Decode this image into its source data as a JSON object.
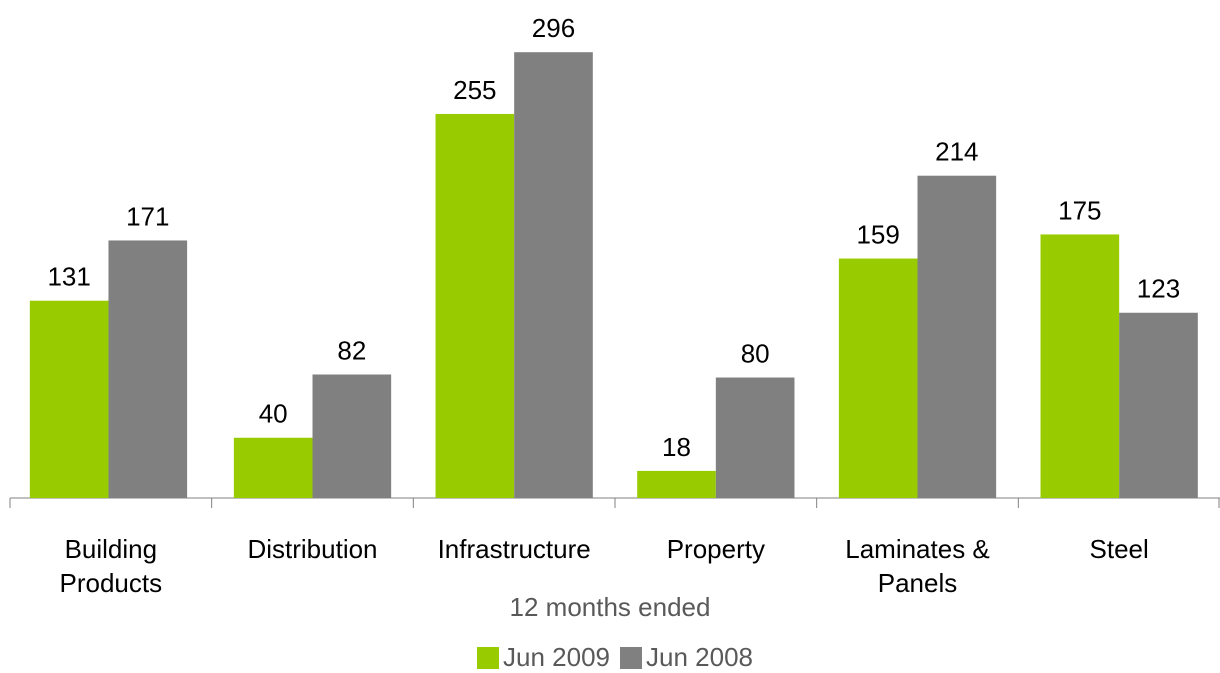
{
  "chart_data": {
    "type": "bar",
    "categories": [
      "Building Products",
      "Distribution",
      "Infrastructure",
      "Property",
      "Laminates & Panels",
      "Steel"
    ],
    "series": [
      {
        "name": "Jun 2009",
        "color": "#99cc00",
        "values": [
          131,
          40,
          255,
          18,
          159,
          175
        ]
      },
      {
        "name": "Jun 2008",
        "color": "#808080",
        "values": [
          171,
          82,
          296,
          80,
          214,
          123
        ]
      }
    ],
    "x_label": "12 months ended",
    "ylim": [
      0,
      330
    ],
    "legend": "bottom"
  }
}
